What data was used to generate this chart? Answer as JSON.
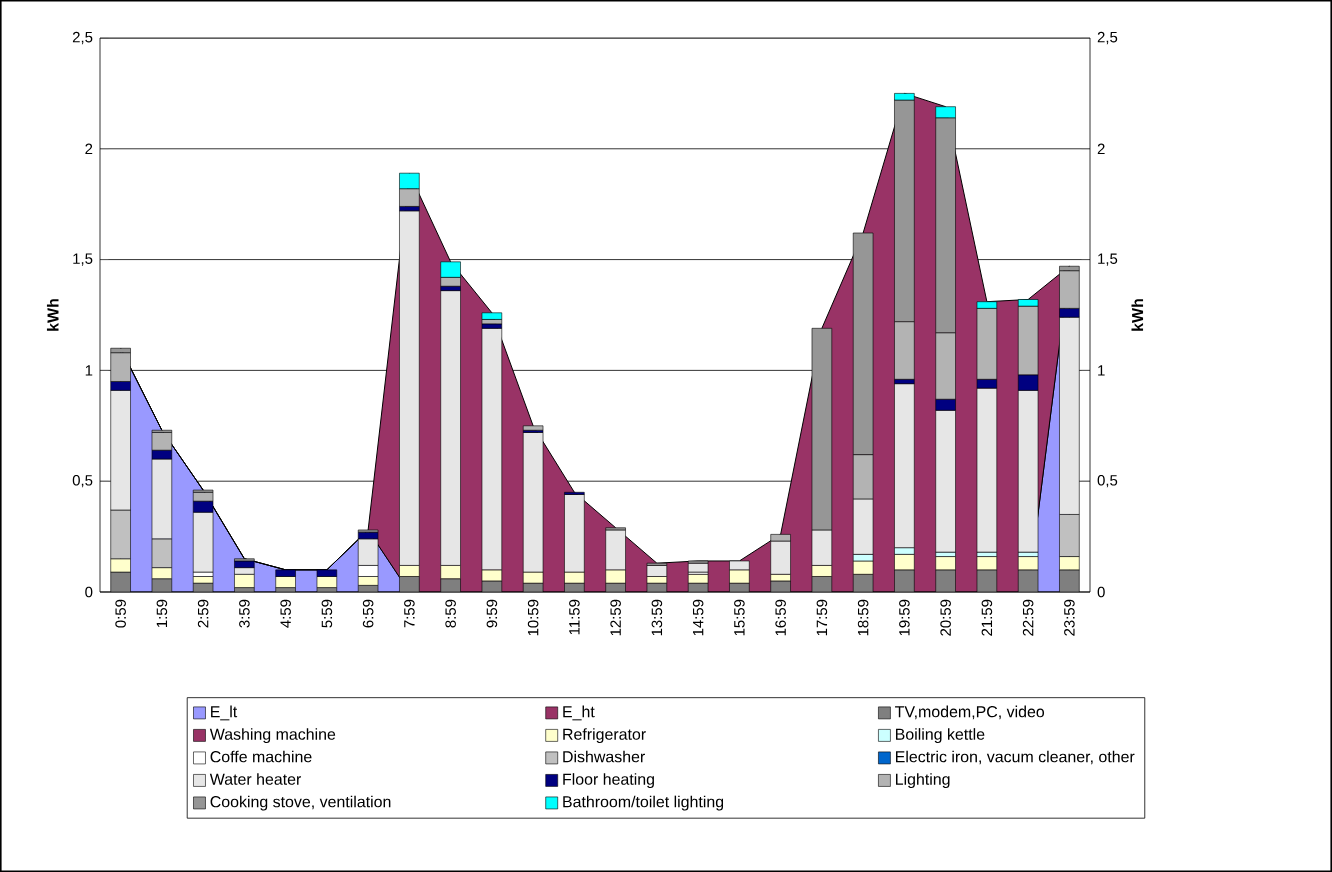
{
  "chart_data": {
    "type": "bar",
    "stacked": true,
    "ylabel": "kWh",
    "y2label": "kWh",
    "ylim": [
      0,
      2.5
    ],
    "yticks": [
      0,
      {
        "value": 0.5,
        "label": "0,5"
      },
      1,
      {
        "value": 1.5,
        "label": "1,5"
      },
      2,
      {
        "value": 2.5,
        "label": "2,5"
      }
    ],
    "y2lim": [
      0,
      2.5
    ],
    "y2ticks": [
      0,
      {
        "value": 0.5,
        "label": "0,5"
      },
      1,
      {
        "value": 1.5,
        "label": "1,5"
      },
      2,
      {
        "value": 2.5,
        "label": "2,5"
      }
    ],
    "grid": "y",
    "legend": "bottom",
    "categories": [
      "0:59",
      "1:59",
      "2:59",
      "3:59",
      "4:59",
      "5:59",
      "6:59",
      "7:59",
      "8:59",
      "9:59",
      "10:59",
      "11:59",
      "12:59",
      "13:59",
      "14:59",
      "15:59",
      "16:59",
      "17:59",
      "18:59",
      "19:59",
      "20:59",
      "21:59",
      "22:59",
      "23:59"
    ],
    "series": [
      {
        "name": "E_lt",
        "type": "area",
        "color": "#9999ff",
        "values": [
          1.1,
          0.73,
          0.46,
          0.15,
          0.1,
          0.1,
          0.28,
          0,
          0,
          0,
          0,
          0,
          0,
          0,
          0,
          0,
          0,
          0,
          0,
          0,
          0,
          0,
          0,
          1.47
        ]
      },
      {
        "name": "E_ht",
        "type": "area",
        "color": "#993366",
        "values": [
          0,
          0,
          0,
          0,
          0,
          0,
          0,
          1.89,
          1.49,
          1.26,
          0.75,
          0.45,
          0.29,
          0.13,
          0.14,
          0.14,
          0.26,
          1.19,
          1.62,
          2.25,
          2.19,
          1.31,
          1.32,
          0
        ]
      },
      {
        "name": "TV,modem,PC, video",
        "axis": "y2",
        "color": "#7f7f7f",
        "values": [
          0.09,
          0.06,
          0.04,
          0.02,
          0.02,
          0.02,
          0.03,
          0.07,
          0.06,
          0.05,
          0.04,
          0.04,
          0.04,
          0.04,
          0.04,
          0.04,
          0.05,
          0.07,
          0.08,
          0.1,
          0.1,
          0.1,
          0.1,
          0.1
        ]
      },
      {
        "name": "Washing machine",
        "axis": "y2",
        "color": "#993366",
        "values": [
          null,
          null,
          null,
          null,
          null,
          null,
          null,
          null,
          null,
          null,
          null,
          null,
          null,
          null,
          null,
          null,
          null,
          null,
          null,
          null,
          null,
          null,
          null,
          null
        ]
      },
      {
        "name": "Refrigerator",
        "axis": "y2",
        "color": "#ffffcc",
        "values": [
          0.06,
          0.05,
          0.03,
          0.06,
          0.05,
          0.05,
          0.04,
          0.05,
          0.06,
          0.05,
          0.05,
          0.05,
          0.06,
          0.03,
          0.04,
          0.06,
          0.03,
          0.05,
          0.06,
          0.07,
          0.06,
          0.06,
          0.06,
          0.06
        ]
      },
      {
        "name": "Boiling kettle",
        "axis": "y2",
        "color": "#ccffff",
        "values": [
          null,
          null,
          null,
          null,
          null,
          null,
          null,
          null,
          null,
          null,
          null,
          null,
          null,
          null,
          null,
          null,
          null,
          null,
          0.03,
          0.03,
          0.02,
          0.02,
          0.02,
          null
        ]
      },
      {
        "name": "Coffe machine",
        "axis": "y2",
        "color": "#ffffff",
        "values": [
          null,
          null,
          0.02,
          null,
          null,
          null,
          0.05,
          null,
          null,
          null,
          null,
          null,
          null,
          null,
          0.01,
          null,
          null,
          null,
          null,
          null,
          null,
          null,
          null,
          null
        ]
      },
      {
        "name": "Dishwasher",
        "axis": "y2",
        "color": "#c0c0c0",
        "values": [
          0.22,
          0.13,
          null,
          null,
          null,
          null,
          null,
          null,
          null,
          null,
          null,
          null,
          null,
          null,
          null,
          null,
          null,
          null,
          null,
          null,
          null,
          null,
          null,
          0.19
        ]
      },
      {
        "name": "Electric iron, vacum cleaner, other",
        "axis": "y2",
        "color": "#0066cc",
        "values": [
          null,
          null,
          null,
          null,
          null,
          null,
          null,
          null,
          null,
          null,
          null,
          null,
          null,
          null,
          null,
          null,
          null,
          null,
          null,
          null,
          null,
          null,
          null,
          null
        ]
      },
      {
        "name": "Water heater",
        "axis": "y2",
        "color": "#e6e6e6",
        "values": [
          0.54,
          0.36,
          0.27,
          0.03,
          null,
          null,
          0.12,
          1.6,
          1.24,
          1.09,
          0.63,
          0.35,
          0.18,
          0.05,
          0.04,
          0.04,
          0.15,
          0.16,
          0.25,
          0.74,
          0.64,
          0.74,
          0.73,
          0.89
        ]
      },
      {
        "name": "Floor heating",
        "axis": "y2",
        "color": "#000080",
        "values": [
          0.04,
          0.04,
          0.05,
          0.03,
          0.03,
          0.03,
          0.03,
          0.02,
          0.02,
          0.02,
          0.01,
          0.01,
          null,
          null,
          null,
          null,
          null,
          null,
          null,
          0.02,
          0.05,
          0.04,
          0.07,
          0.04
        ]
      },
      {
        "name": "Lighting",
        "axis": "y2",
        "color": "#b3b3b3",
        "values": [
          0.13,
          0.08,
          0.04,
          null,
          null,
          null,
          null,
          0.08,
          0.04,
          0.02,
          0.02,
          null,
          null,
          null,
          null,
          null,
          0.03,
          null,
          0.2,
          0.26,
          0.3,
          0.32,
          0.31,
          0.17
        ]
      },
      {
        "name": "Cooking stove, ventilation",
        "axis": "y2",
        "color": "#969696",
        "values": [
          0.02,
          0.01,
          0.01,
          0.01,
          null,
          null,
          0.01,
          null,
          null,
          null,
          null,
          null,
          0.01,
          0.01,
          0.01,
          null,
          null,
          0.91,
          1.0,
          1.0,
          0.97,
          null,
          null,
          0.02
        ]
      },
      {
        "name": "Bathroom/toilet lighting",
        "axis": "y2",
        "color": "#00ffff",
        "values": [
          null,
          null,
          null,
          null,
          null,
          null,
          null,
          0.07,
          0.07,
          0.03,
          null,
          null,
          null,
          null,
          null,
          null,
          null,
          null,
          null,
          0.03,
          0.05,
          0.03,
          0.03,
          null
        ]
      }
    ]
  }
}
